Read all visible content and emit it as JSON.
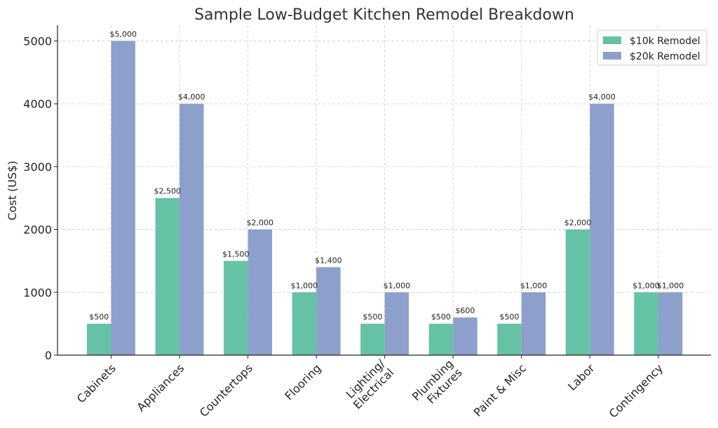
{
  "chart_data": {
    "type": "bar",
    "title": "Sample Low-Budget Kitchen Remodel Breakdown",
    "xlabel": "",
    "ylabel": "Cost (US$)",
    "ylim": [
      0,
      5250
    ],
    "yticks": [
      0,
      1000,
      2000,
      3000,
      4000,
      5000
    ],
    "grid": true,
    "legend_position": "top-right",
    "categories": [
      [
        "Cabinets"
      ],
      [
        "Appliances"
      ],
      [
        "Countertops"
      ],
      [
        "Flooring"
      ],
      [
        "Lighting/",
        "Electrical"
      ],
      [
        "Plumbing",
        "Fixtures"
      ],
      [
        "Paint & Misc"
      ],
      [
        "Labor"
      ],
      [
        "Contingency"
      ]
    ],
    "series": [
      {
        "name": "$10k Remodel",
        "color": "#66c2a5",
        "values": [
          500,
          2500,
          1500,
          1000,
          500,
          500,
          500,
          2000,
          1000
        ],
        "labels": [
          "$500",
          "$2,500",
          "$1,500",
          "$1,000",
          "$500",
          "$500",
          "$500",
          "$2,000",
          "$1,000"
        ]
      },
      {
        "name": "$20k Remodel",
        "color": "#8da0cb",
        "values": [
          5000,
          4000,
          2000,
          1400,
          1000,
          600,
          1000,
          4000,
          1000
        ],
        "labels": [
          "$5,000",
          "$4,000",
          "$2,000",
          "$1,400",
          "$1,000",
          "$600",
          "$1,000",
          "$4,000",
          "$1,000"
        ]
      }
    ]
  }
}
